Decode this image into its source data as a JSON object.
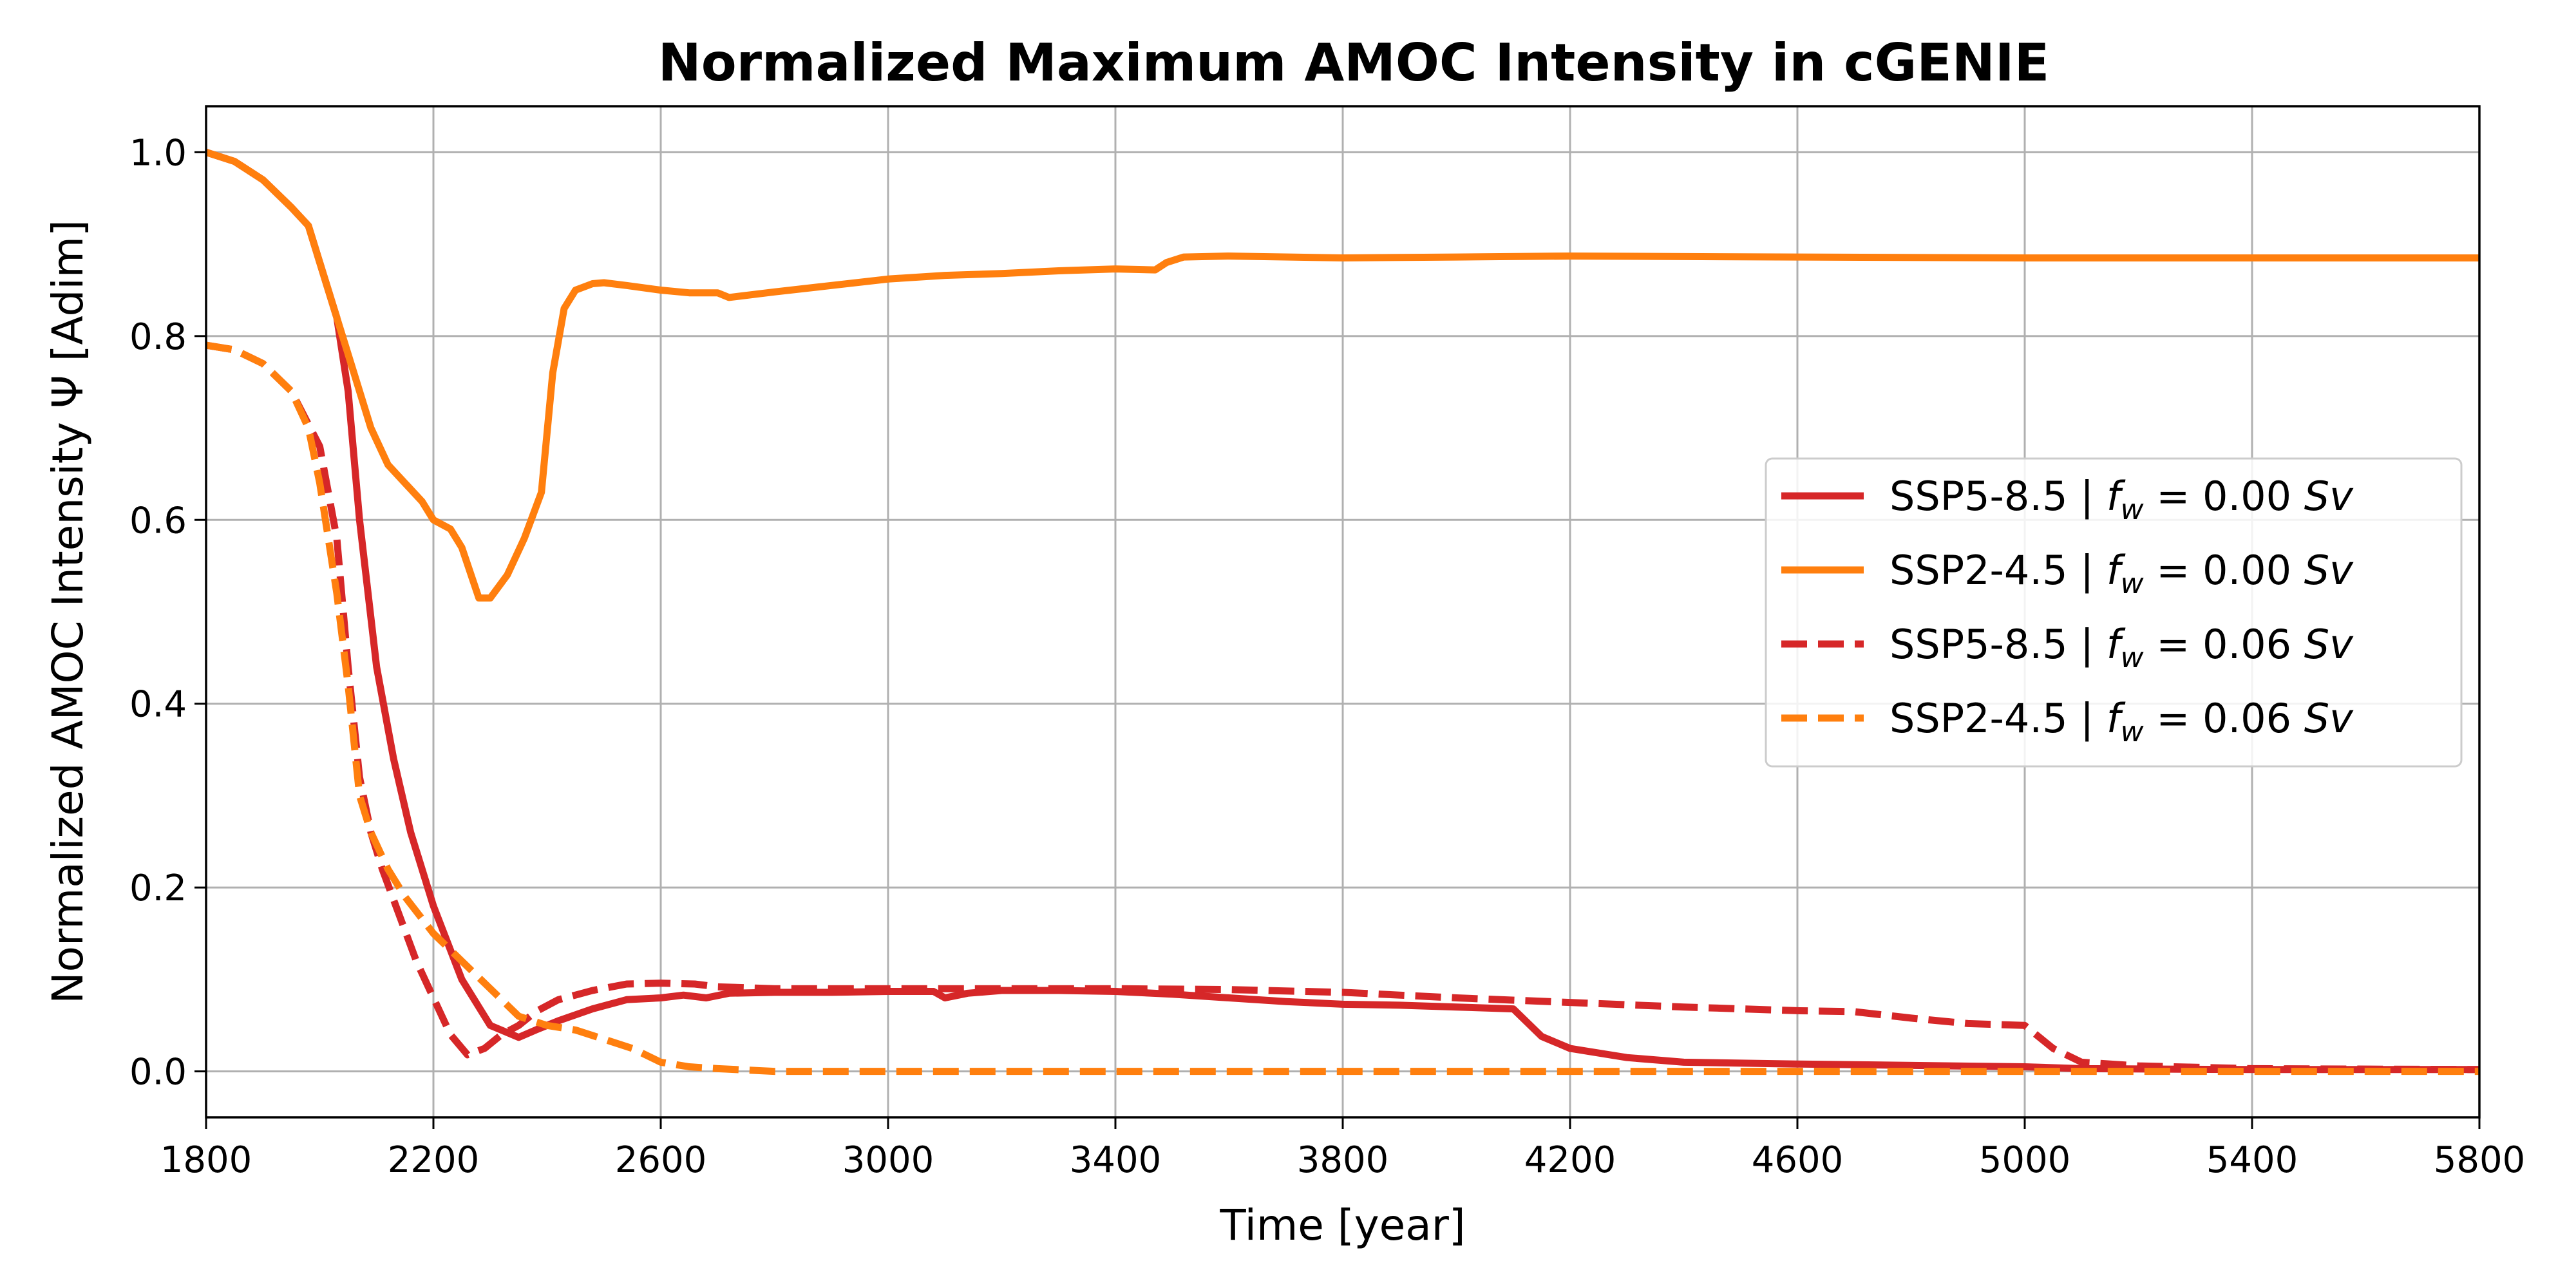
{
  "chart_data": {
    "type": "line",
    "title": "Normalized Maximum AMOC Intensity in cGENIE",
    "xlabel": "Time [year]",
    "ylabel": "Normalized AMOC Intensity Ψ [Adim]",
    "xlim": [
      1800,
      5800
    ],
    "ylim": [
      -0.05,
      1.05
    ],
    "xticks": [
      1800,
      2200,
      2600,
      3000,
      3400,
      3800,
      4200,
      4600,
      5000,
      5400,
      5800
    ],
    "yticks": [
      0.0,
      0.2,
      0.4,
      0.6,
      0.8,
      1.0
    ],
    "xtick_labels": [
      "1800",
      "2200",
      "2600",
      "3000",
      "3400",
      "3800",
      "4200",
      "4600",
      "5000",
      "5400",
      "5800"
    ],
    "ytick_labels": [
      "0.0",
      "0.2",
      "0.4",
      "0.6",
      "0.8",
      "1.0"
    ],
    "grid": true,
    "legend_position": "center-right",
    "series": [
      {
        "name": "SSP5-8.5 | f_w = 0.00 Sv",
        "legend_parts": [
          "SSP5-8.5 | ",
          "f",
          "w",
          " = 0.00 ",
          "Sv"
        ],
        "color": "#d62728",
        "dash": "solid",
        "x": [
          1800,
          1850,
          1900,
          1950,
          1980,
          2000,
          2030,
          2050,
          2070,
          2100,
          2130,
          2160,
          2200,
          2250,
          2300,
          2350,
          2380,
          2420,
          2480,
          2540,
          2600,
          2640,
          2680,
          2720,
          2800,
          2900,
          3000,
          3080,
          3100,
          3140,
          3200,
          3300,
          3400,
          3500,
          3600,
          3700,
          3800,
          3900,
          4000,
          4100,
          4150,
          4200,
          4300,
          4400,
          4600,
          5000,
          5100,
          5400,
          5800
        ],
        "y": [
          1.0,
          0.99,
          0.97,
          0.94,
          0.92,
          0.88,
          0.82,
          0.74,
          0.6,
          0.44,
          0.34,
          0.26,
          0.18,
          0.1,
          0.05,
          0.037,
          0.045,
          0.055,
          0.068,
          0.078,
          0.08,
          0.083,
          0.08,
          0.085,
          0.086,
          0.086,
          0.087,
          0.087,
          0.08,
          0.085,
          0.088,
          0.088,
          0.087,
          0.084,
          0.08,
          0.076,
          0.073,
          0.072,
          0.07,
          0.068,
          0.038,
          0.025,
          0.015,
          0.01,
          0.008,
          0.005,
          0.003,
          0.002,
          0.002
        ]
      },
      {
        "name": "SSP2-4.5 | f_w = 0.00 Sv",
        "legend_parts": [
          "SSP2-4.5 | ",
          "f",
          "w",
          " = 0.00 ",
          "Sv"
        ],
        "color": "#ff7f0e",
        "dash": "solid",
        "x": [
          1800,
          1850,
          1900,
          1950,
          1980,
          2000,
          2030,
          2060,
          2090,
          2120,
          2150,
          2180,
          2200,
          2230,
          2250,
          2280,
          2300,
          2330,
          2360,
          2390,
          2410,
          2430,
          2450,
          2480,
          2500,
          2540,
          2600,
          2650,
          2700,
          2720,
          2800,
          2900,
          3000,
          3100,
          3200,
          3300,
          3400,
          3470,
          3490,
          3520,
          3600,
          3800,
          4000,
          4200,
          4600,
          5000,
          5400,
          5800
        ],
        "y": [
          1.0,
          0.99,
          0.97,
          0.94,
          0.92,
          0.88,
          0.82,
          0.76,
          0.7,
          0.66,
          0.64,
          0.62,
          0.6,
          0.59,
          0.57,
          0.515,
          0.515,
          0.54,
          0.58,
          0.63,
          0.76,
          0.83,
          0.85,
          0.857,
          0.858,
          0.855,
          0.85,
          0.847,
          0.847,
          0.842,
          0.848,
          0.855,
          0.862,
          0.866,
          0.868,
          0.871,
          0.873,
          0.872,
          0.88,
          0.886,
          0.887,
          0.885,
          0.886,
          0.887,
          0.886,
          0.885,
          0.885,
          0.885
        ]
      },
      {
        "name": "SSP5-8.5 | f_w = 0.06 Sv",
        "legend_parts": [
          "SSP5-8.5 | ",
          "f",
          "w",
          " = 0.06 ",
          "Sv"
        ],
        "color": "#d62728",
        "dash": "dashed",
        "x": [
          1800,
          1850,
          1900,
          1950,
          2000,
          2030,
          2050,
          2070,
          2090,
          2110,
          2140,
          2170,
          2200,
          2230,
          2260,
          2290,
          2320,
          2350,
          2380,
          2420,
          2480,
          2540,
          2600,
          2660,
          2700,
          2800,
          2900,
          3000,
          3200,
          3400,
          3600,
          3800,
          4000,
          4200,
          4400,
          4600,
          4700,
          4800,
          4900,
          5000,
          5050,
          5100,
          5200,
          5400,
          5800
        ],
        "y": [
          0.79,
          0.785,
          0.77,
          0.74,
          0.68,
          0.58,
          0.44,
          0.32,
          0.26,
          0.22,
          0.17,
          0.12,
          0.08,
          0.04,
          0.018,
          0.025,
          0.04,
          0.05,
          0.065,
          0.078,
          0.088,
          0.095,
          0.096,
          0.095,
          0.092,
          0.09,
          0.09,
          0.09,
          0.09,
          0.09,
          0.089,
          0.086,
          0.08,
          0.075,
          0.07,
          0.066,
          0.065,
          0.058,
          0.052,
          0.05,
          0.025,
          0.01,
          0.006,
          0.003,
          0.002
        ]
      },
      {
        "name": "SSP2-4.5 | f_w = 0.06 Sv",
        "legend_parts": [
          "SSP2-4.5 | ",
          "f",
          "w",
          " = 0.06 ",
          "Sv"
        ],
        "color": "#ff7f0e",
        "dash": "dashed",
        "x": [
          1800,
          1850,
          1900,
          1950,
          1980,
          2000,
          2030,
          2050,
          2070,
          2090,
          2120,
          2150,
          2200,
          2250,
          2300,
          2350,
          2400,
          2450,
          2500,
          2550,
          2600,
          2650,
          2700,
          2800,
          3000,
          3400,
          3800,
          4200,
          4600,
          5000,
          5400,
          5800
        ],
        "y": [
          0.79,
          0.785,
          0.77,
          0.74,
          0.7,
          0.64,
          0.52,
          0.42,
          0.3,
          0.26,
          0.22,
          0.19,
          0.15,
          0.12,
          0.09,
          0.06,
          0.05,
          0.045,
          0.035,
          0.025,
          0.01,
          0.005,
          0.003,
          0.0,
          0.0,
          0.0,
          0.0,
          0.0,
          0.0,
          0.0,
          0.0,
          0.0
        ]
      }
    ]
  }
}
